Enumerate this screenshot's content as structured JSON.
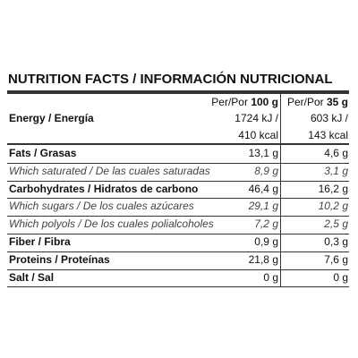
{
  "header": {
    "title": "NUTRITION FACTS / INFORMACIÓN NUTRICIONAL"
  },
  "table": {
    "columns": [
      {
        "prefix": "Per/Por",
        "size": "100 g"
      },
      {
        "prefix": "Per/Por",
        "size": "35 g"
      }
    ],
    "rows": [
      {
        "name": "Energy / Energía",
        "bold": true,
        "values": [
          "1724 kJ /",
          "603 kJ /"
        ]
      },
      {
        "values": [
          "410 kcal",
          "143 kcal"
        ]
      },
      {
        "name": "Fats / Grasas",
        "bold": true,
        "values": [
          "13,1 g",
          "4,6 g"
        ]
      },
      {
        "name": "Which saturated / De las cuales saturadas",
        "bold": false,
        "values": [
          "8,9 g",
          "3,1 g"
        ]
      },
      {
        "name": "Carbohydrates / Hidratos de carbono",
        "bold": true,
        "values": [
          "46,4 g",
          "16,2 g"
        ]
      },
      {
        "name": "Which sugars / De los cuales azúcares",
        "bold": false,
        "values": [
          "29,1 g",
          "10,2 g"
        ]
      },
      {
        "name": "Which polyols / De los cuales polialcoholes",
        "bold": false,
        "values": [
          "7,2 g",
          "2,5 g"
        ]
      },
      {
        "name": "Fiber / Fibra",
        "bold": true,
        "values": [
          "0,9 g",
          "0,3 g"
        ]
      },
      {
        "name": "Proteins / Proteínas",
        "bold": true,
        "values": [
          "21,8 g",
          "7,6 g"
        ]
      },
      {
        "name": "Salt / Sal",
        "bold": true,
        "values": [
          "0 g",
          "0 g"
        ]
      }
    ]
  }
}
